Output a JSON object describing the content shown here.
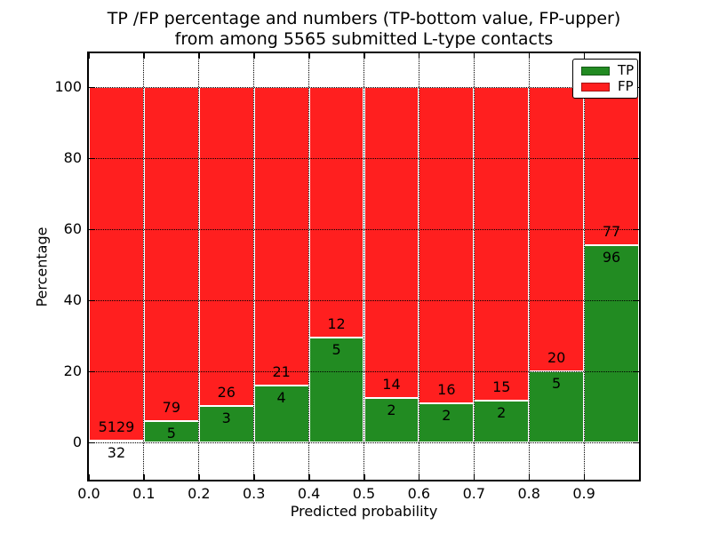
{
  "figure": {
    "title_lines": [
      "TP /FP percentage and numbers (TP-bottom value, FP-upper)",
      "from among 5565 submitted L-type contacts"
    ]
  },
  "chart_data": {
    "type": "bar",
    "stacked": true,
    "normalized": "each bin scaled to 100%",
    "title": "TP /FP percentage and numbers (TP-bottom value, FP-upper) from among 5565 submitted L-type contacts",
    "total_submitted_contacts": 5565,
    "xlabel": "Predicted probability",
    "ylabel": "Percentage",
    "xlim": [
      0.0,
      1.0
    ],
    "ylim": [
      -10.5,
      109.5
    ],
    "grid": {
      "visible": true,
      "style": "dotted",
      "color": "#000000"
    },
    "x_bin_edges": [
      0.0,
      0.1,
      0.2,
      0.3,
      0.4,
      0.5,
      0.6,
      0.7,
      0.8,
      0.9,
      1.0
    ],
    "x_tick_values": [
      0.0,
      0.1,
      0.2,
      0.3,
      0.4,
      0.5,
      0.6,
      0.7,
      0.8,
      0.9
    ],
    "x_tick_labels": [
      "0.0",
      "0.1",
      "0.2",
      "0.3",
      "0.4",
      "0.5",
      "0.6",
      "0.7",
      "0.8",
      "0.9"
    ],
    "y_tick_values": [
      0,
      20,
      40,
      60,
      80,
      100
    ],
    "y_tick_labels": [
      "0",
      "20",
      "40",
      "60",
      "80",
      "100"
    ],
    "legend": {
      "position": "upper right",
      "entries": [
        {
          "label": "TP",
          "color": "#228b22"
        },
        {
          "label": "FP",
          "color": "#ff1f1f"
        }
      ]
    },
    "series": [
      {
        "name": "TP",
        "position": "bottom",
        "color": "#228b22",
        "counts": [
          32,
          5,
          3,
          4,
          5,
          2,
          2,
          2,
          5,
          96
        ]
      },
      {
        "name": "FP",
        "position": "upper",
        "color": "#ff1f1f",
        "counts": [
          5129,
          79,
          26,
          21,
          12,
          14,
          16,
          15,
          20,
          77
        ]
      }
    ],
    "tp_percent_by_bin": [
      0.62,
      5.95,
      10.34,
      16.0,
      29.41,
      12.5,
      11.11,
      11.76,
      20.0,
      55.49
    ]
  },
  "colors": {
    "tp_green": "#228b22",
    "fp_red": "#ff1f1f",
    "axis": "#000000",
    "background": "#ffffff"
  }
}
